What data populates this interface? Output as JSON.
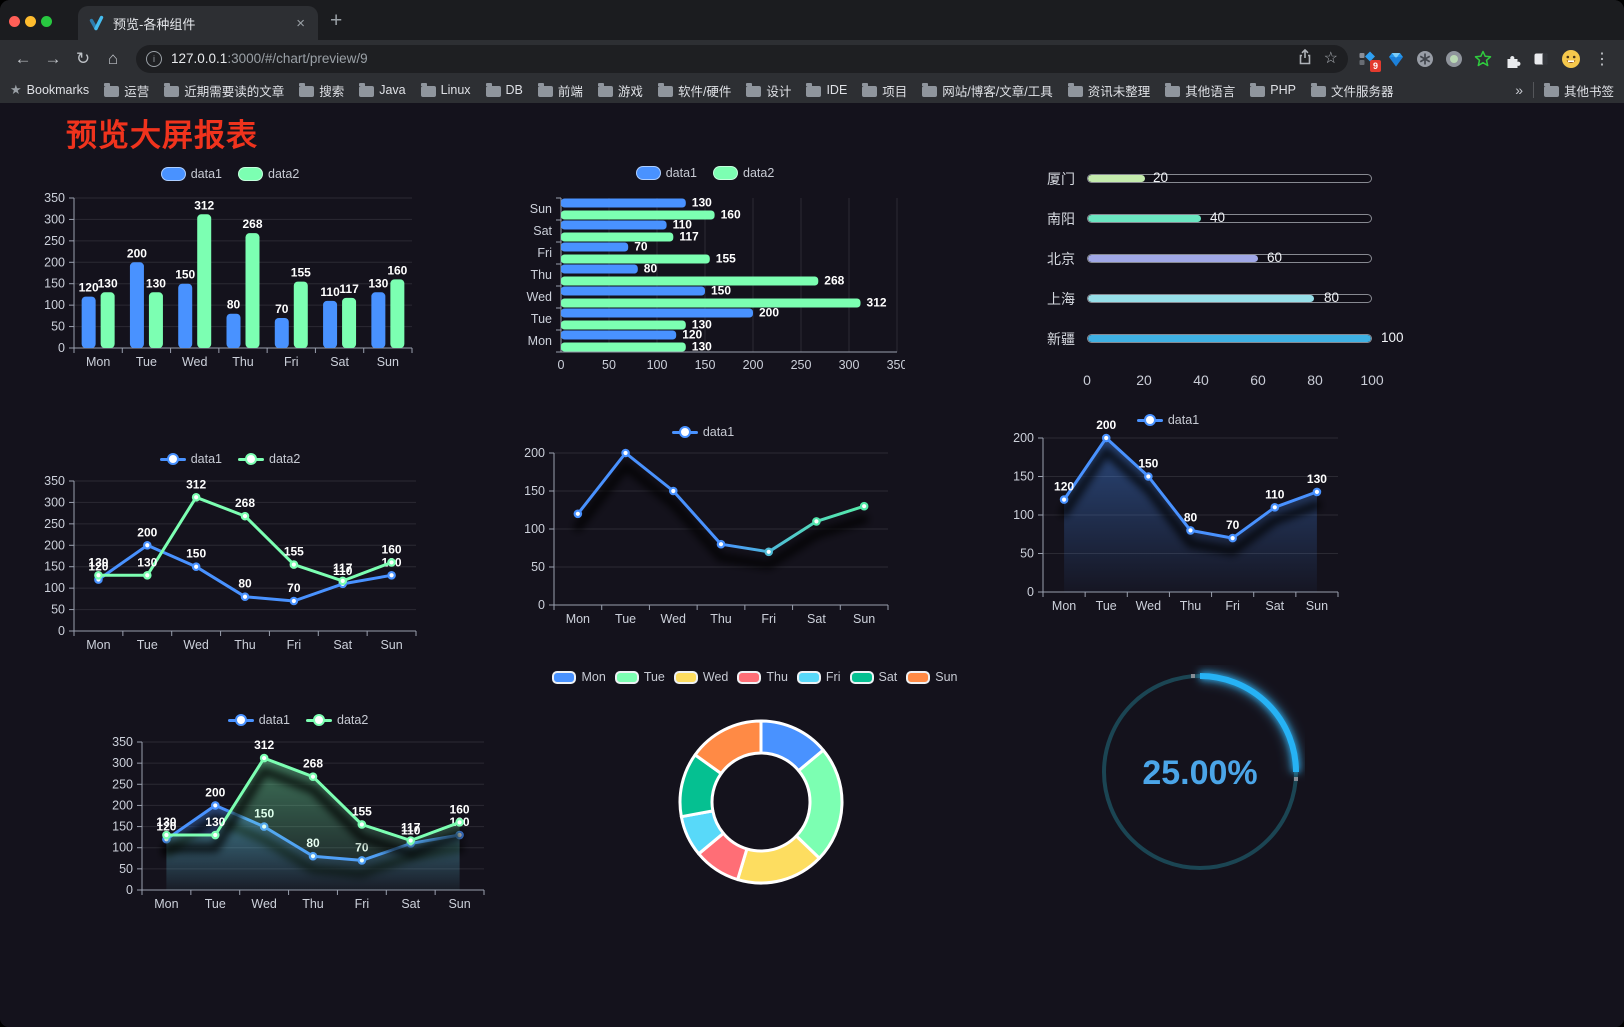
{
  "browser": {
    "tab": {
      "title": "预览-各种组件"
    },
    "url": {
      "host": "127.0.0.1",
      "rest": ":3000/#/chart/preview/9"
    },
    "icons": {
      "back": "←",
      "forward": "→",
      "reload": "↻",
      "home": "⌂",
      "close": "×",
      "new_tab": "+",
      "info": "i",
      "star": "☆",
      "menu_dots": "⋮",
      "bookmarks_star": "★",
      "overflow_chevron": "»",
      "extension_badge": "9"
    },
    "bookmarks": {
      "label": "Bookmarks",
      "items": [
        "运营",
        "近期需要读的文章",
        "搜索",
        "Java",
        "Linux",
        "DB",
        "前端",
        "游戏",
        "软件/硬件",
        "设计",
        "IDE",
        "项目",
        "网站/博客/文章/工具",
        "资讯未整理",
        "其他语言",
        "PHP",
        "文件服务器"
      ],
      "other": "其他书签"
    }
  },
  "page": {
    "title": "预览大屏报表",
    "title_color": "#f0331d",
    "background": "#14121c"
  },
  "chart_data": [
    {
      "id": "bar-grouped",
      "type": "bar",
      "title": "",
      "categories": [
        "Mon",
        "Tue",
        "Wed",
        "Thu",
        "Fri",
        "Sat",
        "Sun"
      ],
      "series": [
        {
          "name": "data1",
          "color": "#4992ff",
          "values": [
            120,
            200,
            150,
            80,
            70,
            110,
            130
          ]
        },
        {
          "name": "data2",
          "color": "#7cffb2",
          "values": [
            130,
            130,
            312,
            268,
            155,
            117,
            160
          ]
        }
      ],
      "ylim": [
        0,
        350
      ],
      "ytick": 50,
      "grid": true,
      "value_labels": true,
      "legend_position": "top"
    },
    {
      "id": "hbar-grouped",
      "type": "bar",
      "orientation": "horizontal",
      "categories": [
        "Sun",
        "Sat",
        "Fri",
        "Thu",
        "Wed",
        "Tue",
        "Mon"
      ],
      "series": [
        {
          "name": "data1",
          "color": "#4992ff",
          "values": [
            130,
            110,
            70,
            80,
            150,
            200,
            120
          ]
        },
        {
          "name": "data2",
          "color": "#7cffb2",
          "values": [
            160,
            117,
            155,
            268,
            312,
            130,
            130
          ]
        }
      ],
      "xlim": [
        0,
        350
      ],
      "xtick": 50,
      "grid": true,
      "value_labels": true,
      "legend_position": "top"
    },
    {
      "id": "progress-bars",
      "type": "bar",
      "orientation": "horizontal",
      "variant": "progress",
      "items": [
        {
          "label": "厦门",
          "value": 20,
          "color": "#c4ebad"
        },
        {
          "label": "南阳",
          "value": 40,
          "color": "#6be6c1"
        },
        {
          "label": "北京",
          "value": 60,
          "color": "#a0a7e6"
        },
        {
          "label": "上海",
          "value": 80,
          "color": "#96dee8"
        },
        {
          "label": "新疆",
          "value": 100,
          "color": "#3fb1e3"
        }
      ],
      "xlim": [
        0,
        100
      ],
      "xticks": [
        0,
        20,
        40,
        60,
        80,
        100
      ]
    },
    {
      "id": "line-two-series",
      "type": "line",
      "categories": [
        "Mon",
        "Tue",
        "Wed",
        "Thu",
        "Fri",
        "Sat",
        "Sun"
      ],
      "series": [
        {
          "name": "data1",
          "color": "#4992ff",
          "values": [
            120,
            200,
            150,
            80,
            70,
            110,
            130
          ]
        },
        {
          "name": "data2",
          "color": "#7cffb2",
          "values": [
            130,
            130,
            312,
            268,
            155,
            117,
            160
          ]
        }
      ],
      "ylim": [
        0,
        350
      ],
      "ytick": 50,
      "grid": true,
      "value_labels": true,
      "legend_position": "top"
    },
    {
      "id": "line-gradient",
      "type": "line",
      "categories": [
        "Mon",
        "Tue",
        "Wed",
        "Thu",
        "Fri",
        "Sat",
        "Sun"
      ],
      "series": [
        {
          "name": "data1",
          "gradient": [
            "#4992ff",
            "#55eba9"
          ],
          "values": [
            120,
            200,
            150,
            80,
            70,
            110,
            130
          ]
        }
      ],
      "ylim": [
        0,
        200
      ],
      "ytick": 50,
      "grid": true,
      "value_labels": false,
      "shadow": true,
      "legend_position": "top"
    },
    {
      "id": "line-area-single",
      "type": "area",
      "categories": [
        "Mon",
        "Tue",
        "Wed",
        "Thu",
        "Fri",
        "Sat",
        "Sun"
      ],
      "series": [
        {
          "name": "data1",
          "color": "#4992ff",
          "values": [
            120,
            200,
            150,
            80,
            70,
            110,
            130
          ],
          "area": true
        }
      ],
      "ylim": [
        0,
        200
      ],
      "ytick": 50,
      "grid": true,
      "value_labels": true,
      "shadow": true,
      "legend_position": "top"
    },
    {
      "id": "line-two-area",
      "type": "area",
      "categories": [
        "Mon",
        "Tue",
        "Wed",
        "Thu",
        "Fri",
        "Sat",
        "Sun"
      ],
      "series": [
        {
          "name": "data1",
          "color": "#4992ff",
          "values": [
            120,
            200,
            150,
            80,
            70,
            110,
            130
          ],
          "area": true
        },
        {
          "name": "data2",
          "color": "#7cffb2",
          "values": [
            130,
            130,
            312,
            268,
            155,
            117,
            160
          ],
          "area": true
        }
      ],
      "ylim": [
        0,
        350
      ],
      "ytick": 50,
      "grid": true,
      "value_labels": true,
      "shadow": true,
      "legend_position": "top"
    },
    {
      "id": "donut",
      "type": "pie",
      "variant": "donut",
      "labels": [
        "Mon",
        "Tue",
        "Wed",
        "Thu",
        "Fri",
        "Sat",
        "Sun"
      ],
      "values": [
        120,
        200,
        150,
        80,
        70,
        110,
        130
      ],
      "colors": [
        "#4992ff",
        "#7cffb2",
        "#fddd60",
        "#ff6e76",
        "#58d9f9",
        "#05c091",
        "#ff8a45"
      ],
      "border_color": "#ffffff",
      "legend_position": "top"
    },
    {
      "id": "gauge",
      "type": "pie",
      "variant": "gauge",
      "value": 25,
      "label": "25.00%",
      "progress_color": "#28b2f5",
      "track_color": "#1b4553",
      "text_color": "#4ba5e8"
    }
  ]
}
